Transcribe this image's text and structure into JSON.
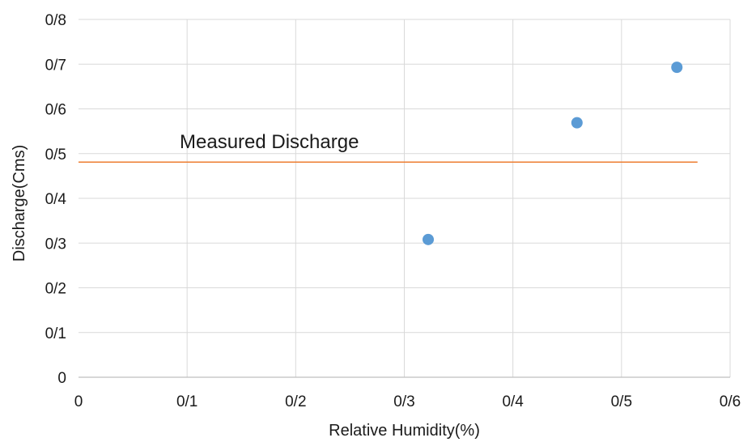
{
  "chart_data": {
    "type": "scatter",
    "title": "",
    "xlabel": "Relative Humidity(%)",
    "ylabel": "Discharge(Cms)",
    "xlim": [
      0,
      0.6
    ],
    "ylim": [
      0,
      0.8
    ],
    "x_ticks": [
      0,
      0.1,
      0.2,
      0.3,
      0.4,
      0.5,
      0.6
    ],
    "y_ticks": [
      0,
      0.1,
      0.2,
      0.3,
      0.4,
      0.5,
      0.6,
      0.7,
      0.8
    ],
    "x_tick_labels": [
      "0",
      "0/1",
      "0/2",
      "0/3",
      "0/4",
      "0/5",
      "0/6"
    ],
    "y_tick_labels": [
      "0",
      "0/1",
      "0/2",
      "0/3",
      "0/4",
      "0/5",
      "0/6",
      "0/7",
      "0/8"
    ],
    "grid": true,
    "series": [
      {
        "color": "#5b9bd5",
        "points": [
          {
            "x": 0.322,
            "y": 0.308
          },
          {
            "x": 0.459,
            "y": 0.569
          },
          {
            "x": 0.551,
            "y": 0.693
          }
        ]
      }
    ],
    "reference_line": {
      "label": "Measured Discharge",
      "y": 0.481,
      "x_range": [
        0,
        0.57
      ],
      "color": "#ed7d31"
    }
  }
}
